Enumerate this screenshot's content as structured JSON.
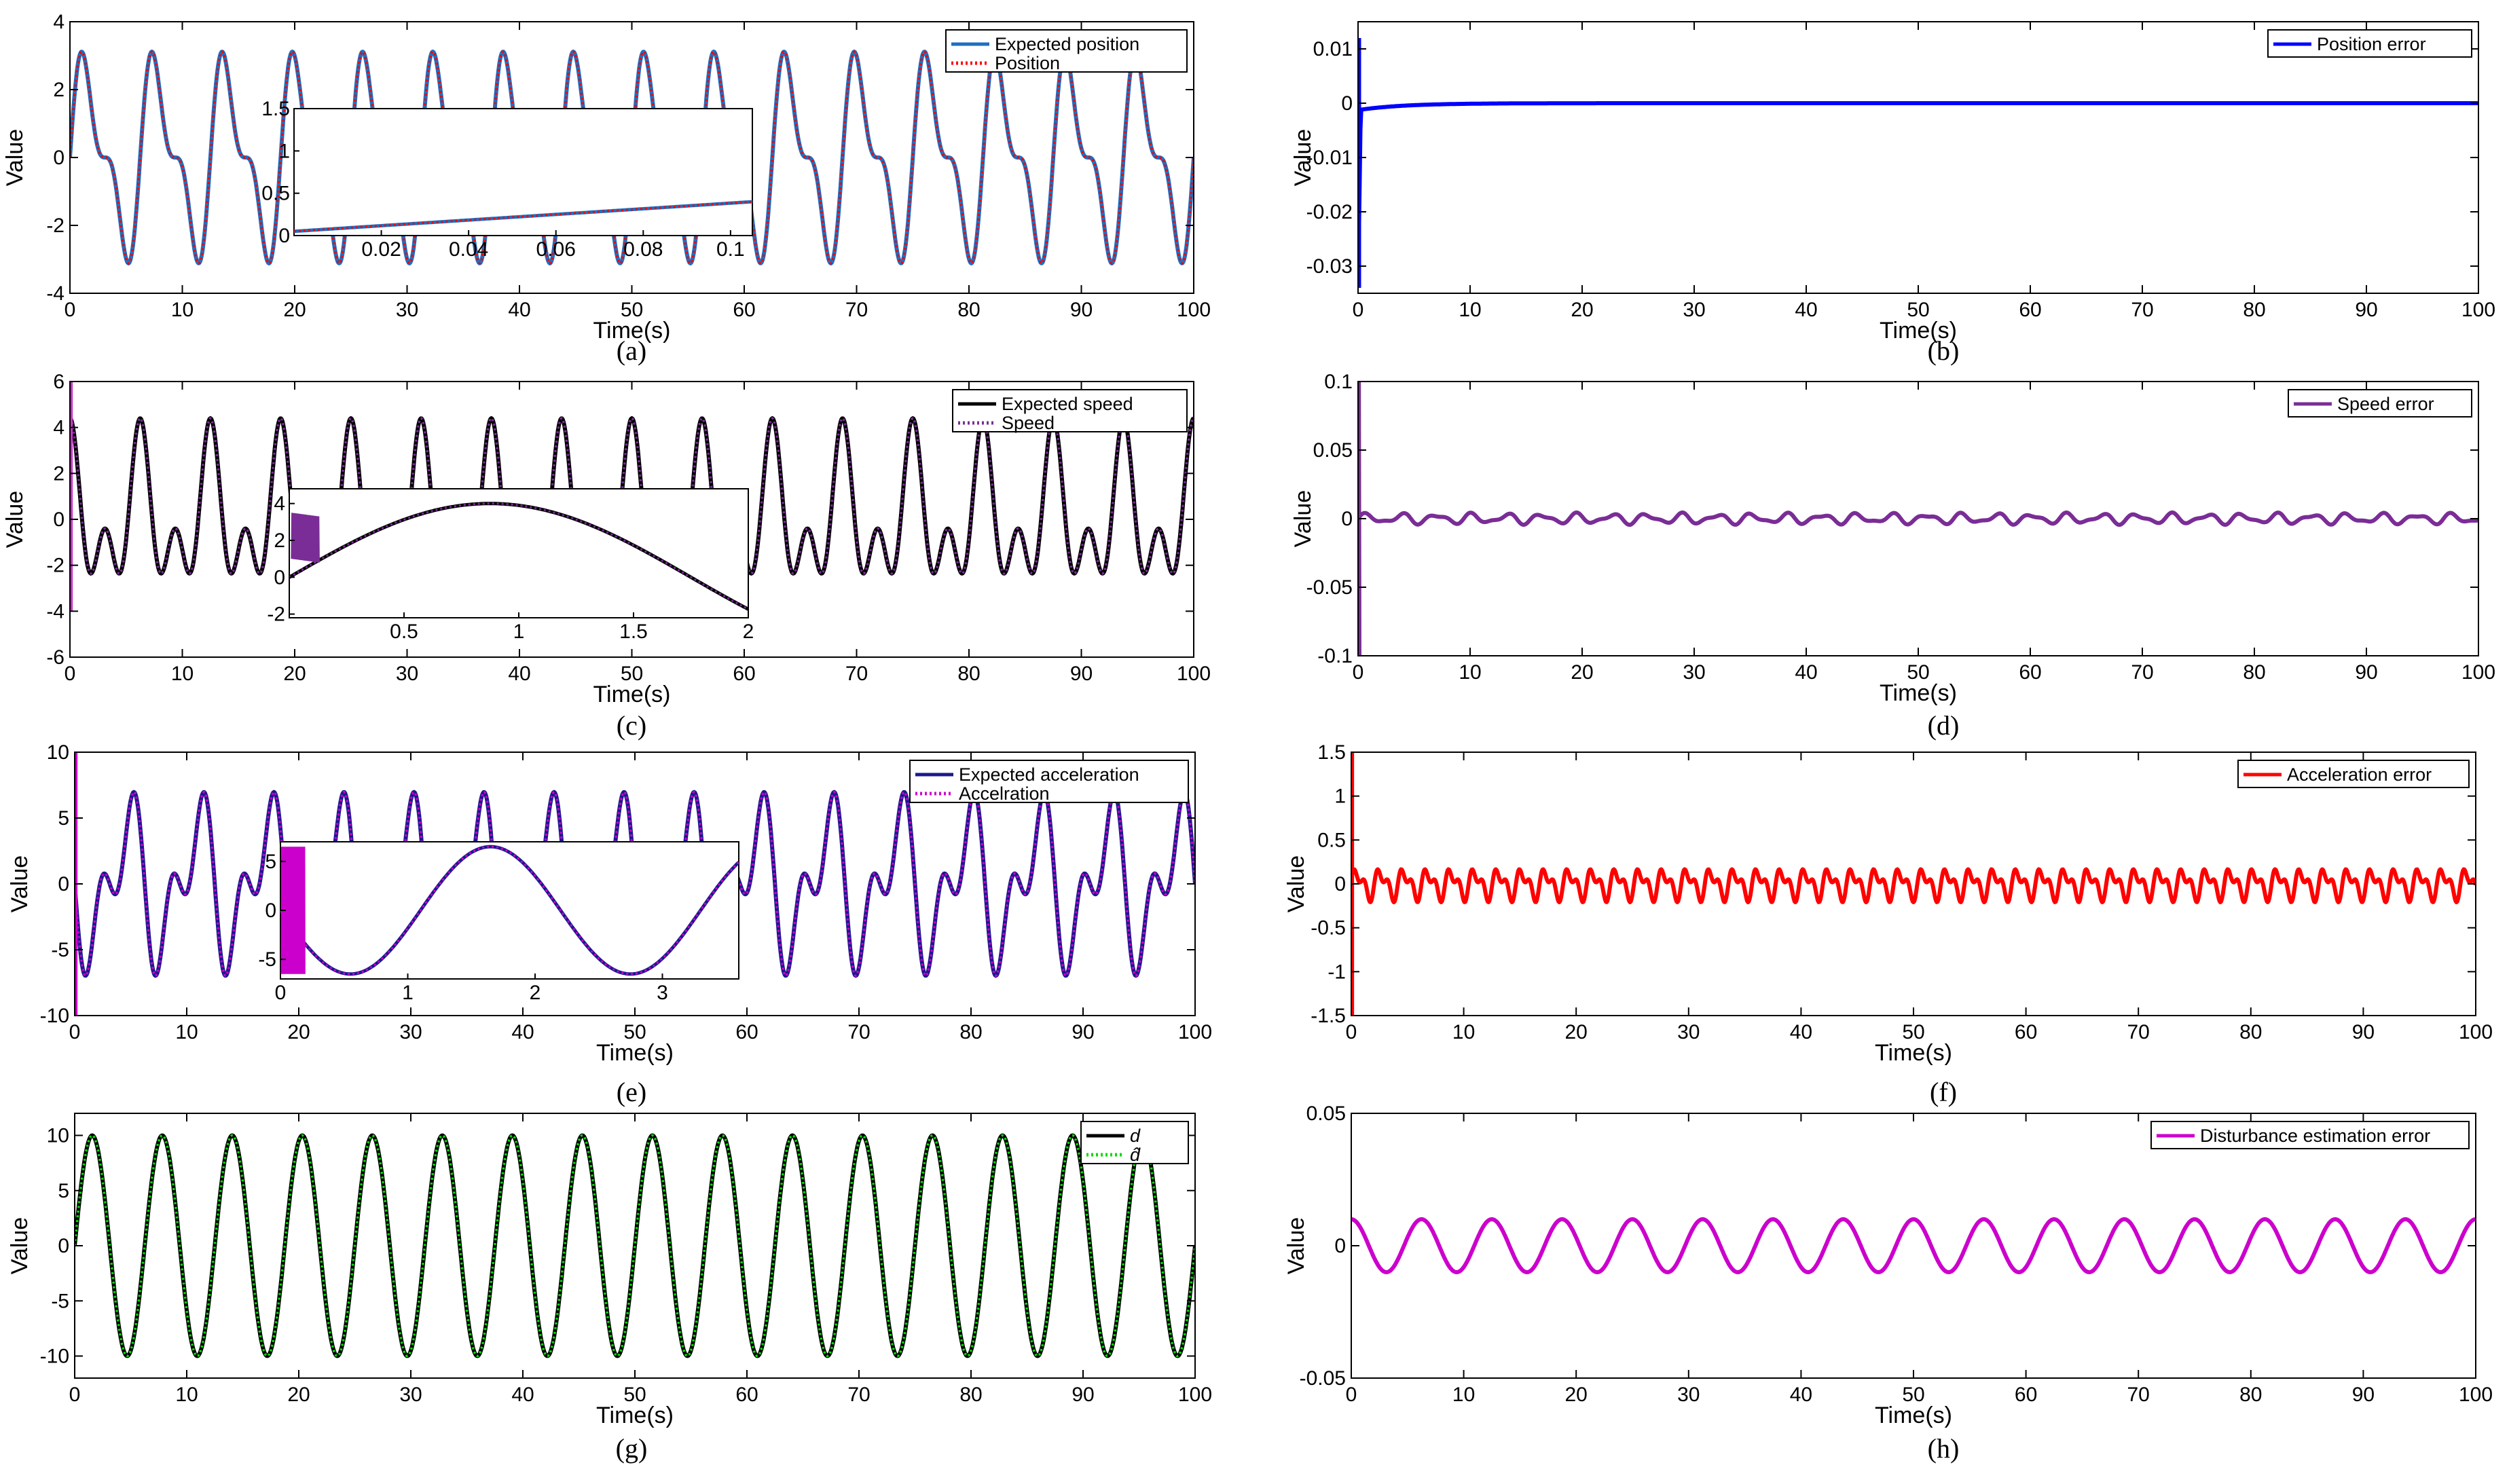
{
  "chart_data": [
    {
      "id": "a",
      "type": "line",
      "sublabel": "(a)",
      "xlabel": "Time(s)",
      "ylabel": "Value",
      "xlim": [
        0,
        100
      ],
      "ylim": [
        -4,
        4
      ],
      "xticks": [
        0,
        10,
        20,
        30,
        40,
        50,
        60,
        70,
        80,
        90,
        100
      ],
      "yticks": [
        -4,
        -2,
        0,
        2,
        4
      ],
      "legend_position": "top-right",
      "series": [
        {
          "name": "Expected position",
          "color": "#1f6fc0",
          "style": "solid",
          "formula": "pos"
        },
        {
          "name": "Position",
          "color": "#ff0000",
          "style": "dotted",
          "formula": "pos"
        }
      ],
      "inset": {
        "xlim": [
          0,
          0.105
        ],
        "ylim": [
          0,
          1.5
        ],
        "xticks": [
          0.02,
          0.04,
          0.06,
          0.08,
          0.1
        ],
        "yticks": [
          0,
          0.5,
          1,
          1.5
        ],
        "formula": "pos"
      }
    },
    {
      "id": "b",
      "type": "line",
      "sublabel": "(b)",
      "xlabel": "Time(s)",
      "ylabel": "Value",
      "xlim": [
        0,
        100
      ],
      "ylim": [
        -0.035,
        0.015
      ],
      "xticks": [
        0,
        10,
        20,
        30,
        40,
        50,
        60,
        70,
        80,
        90,
        100
      ],
      "yticks": [
        -0.03,
        -0.02,
        -0.01,
        0,
        0.01
      ],
      "legend_position": "top-right",
      "series": [
        {
          "name": "Position error",
          "color": "#0000ff",
          "style": "solid",
          "formula": "perr"
        }
      ]
    },
    {
      "id": "c",
      "type": "line",
      "sublabel": "(c)",
      "xlabel": "Time(s)",
      "ylabel": "Value",
      "xlim": [
        0,
        100
      ],
      "ylim": [
        -6,
        6
      ],
      "xticks": [
        0,
        10,
        20,
        30,
        40,
        50,
        60,
        70,
        80,
        90,
        100
      ],
      "yticks": [
        -6,
        -4,
        -2,
        0,
        2,
        4,
        6
      ],
      "legend_position": "top-right",
      "series": [
        {
          "name": "Expected speed",
          "color": "#000000",
          "style": "solid",
          "formula": "vel"
        },
        {
          "name": "Speed",
          "color": "#7a2d96",
          "style": "dotted",
          "formula": "vel"
        }
      ],
      "inset": {
        "xlim": [
          0,
          2
        ],
        "ylim": [
          -2.2,
          4.8
        ],
        "xticks": [
          0.5,
          1,
          1.5,
          2
        ],
        "yticks": [
          -2,
          0,
          2,
          4
        ],
        "formula": "vel"
      }
    },
    {
      "id": "d",
      "type": "line",
      "sublabel": "(d)",
      "xlabel": "Time(s)",
      "ylabel": "Value",
      "xlim": [
        0,
        100
      ],
      "ylim": [
        -0.1,
        0.1
      ],
      "xticks": [
        0,
        10,
        20,
        30,
        40,
        50,
        60,
        70,
        80,
        90,
        100
      ],
      "yticks": [
        -0.1,
        -0.05,
        0,
        0.05,
        0.1
      ],
      "legend_position": "top-right",
      "series": [
        {
          "name": "Speed error",
          "color": "#7a2d96",
          "style": "solid",
          "formula": "verr"
        }
      ]
    },
    {
      "id": "e",
      "type": "line",
      "sublabel": "(e)",
      "xlabel": "Time(s)",
      "ylabel": "Value",
      "xlim": [
        0,
        100
      ],
      "ylim": [
        -10,
        10
      ],
      "xticks": [
        0,
        10,
        20,
        30,
        40,
        50,
        60,
        70,
        80,
        90,
        100
      ],
      "yticks": [
        -10,
        -5,
        0,
        5,
        10
      ],
      "legend_position": "top-right",
      "series": [
        {
          "name": "Expected acceleration",
          "color": "#1a1a8c",
          "style": "solid",
          "formula": "acc"
        },
        {
          "name": "Accelration",
          "color": "#cc00cc",
          "style": "dotted",
          "formula": "acc"
        }
      ],
      "inset": {
        "xlim": [
          0,
          3.6
        ],
        "ylim": [
          -7,
          7
        ],
        "xticks": [
          0,
          1,
          2,
          3
        ],
        "yticks": [
          -5,
          0,
          5
        ],
        "formula": "acc"
      }
    },
    {
      "id": "f",
      "type": "line",
      "sublabel": "(f)",
      "xlabel": "Time(s)",
      "ylabel": "Value",
      "xlim": [
        0,
        100
      ],
      "ylim": [
        -1.5,
        1.5
      ],
      "xticks": [
        0,
        10,
        20,
        30,
        40,
        50,
        60,
        70,
        80,
        90,
        100
      ],
      "yticks": [
        -1.5,
        -1,
        -0.5,
        0,
        0.5,
        1,
        1.5
      ],
      "legend_position": "top-right",
      "series": [
        {
          "name": "Acceleration error",
          "color": "#ff0000",
          "style": "solid",
          "formula": "aerr"
        }
      ]
    },
    {
      "id": "g",
      "type": "line",
      "sublabel": "(g)",
      "xlabel": "Time(s)",
      "ylabel": "Value",
      "xlim": [
        0,
        100
      ],
      "ylim": [
        -12,
        12
      ],
      "xticks": [
        0,
        10,
        20,
        30,
        40,
        50,
        60,
        70,
        80,
        90,
        100
      ],
      "yticks": [
        -10,
        -5,
        0,
        5,
        10
      ],
      "legend_position": "top-right",
      "series": [
        {
          "name": "d",
          "color": "#000000",
          "style": "solid",
          "formula": "dist"
        },
        {
          "name": "d̂",
          "color": "#00dd00",
          "style": "dotted",
          "formula": "dist"
        }
      ]
    },
    {
      "id": "h",
      "type": "line",
      "sublabel": "(h)",
      "xlabel": "Time(s)",
      "ylabel": "Value",
      "xlim": [
        0,
        100
      ],
      "ylim": [
        -0.05,
        0.05
      ],
      "xticks": [
        0,
        10,
        20,
        30,
        40,
        50,
        60,
        70,
        80,
        90,
        100
      ],
      "yticks": [
        -0.05,
        0,
        0.05
      ],
      "legend_position": "top-right",
      "series": [
        {
          "name": "Disturbance estimation error",
          "color": "#cc00cc",
          "style": "solid",
          "formula": "derr"
        }
      ]
    }
  ]
}
